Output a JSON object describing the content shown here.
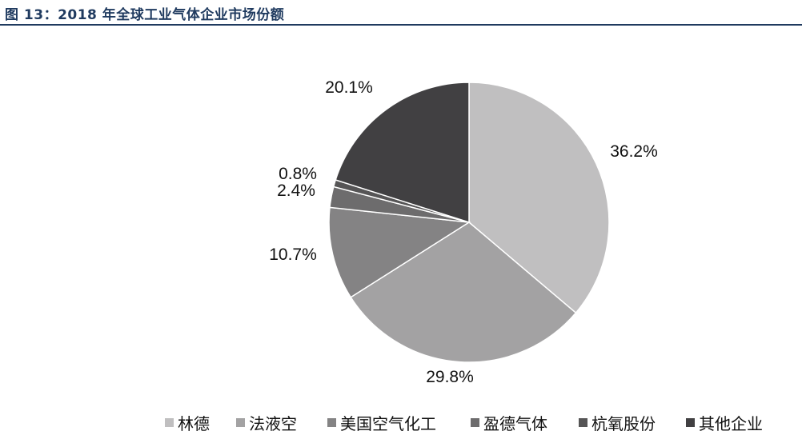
{
  "title": "图 13：2018 年全球工业气体企业市场份额",
  "chart_data": {
    "type": "pie",
    "title": "",
    "start_angle_deg": 0,
    "direction": "clockwise",
    "slices": [
      {
        "name": "林德",
        "value": 36.2,
        "label": "36.2%",
        "color": "#c0bfc0"
      },
      {
        "name": "法液空",
        "value": 29.8,
        "label": "29.8%",
        "color": "#a3a2a3"
      },
      {
        "name": "美国空气化工",
        "value": 10.7,
        "label": "10.7%",
        "color": "#848384"
      },
      {
        "name": "盈德气体",
        "value": 2.4,
        "label": "2.4%",
        "color": "#6d6c6d"
      },
      {
        "name": "杭氧股份",
        "value": 0.8,
        "label": "0.8%",
        "color": "#565556"
      },
      {
        "name": "其他企业",
        "value": 20.1,
        "label": "20.1%",
        "color": "#414042"
      }
    ],
    "legend_position": "bottom"
  }
}
